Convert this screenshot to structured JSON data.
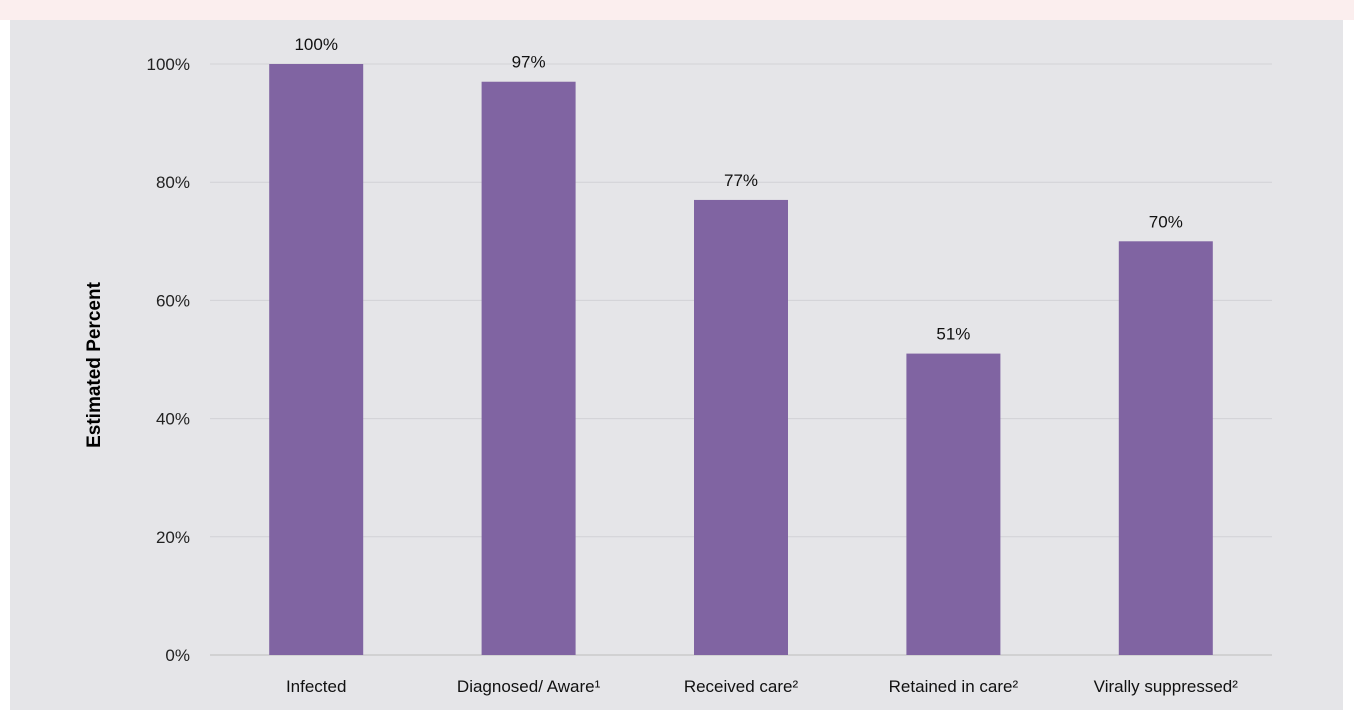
{
  "chart_data": {
    "type": "bar",
    "categories": [
      "Infected",
      "Diagnosed/ Aware¹",
      "Received care²",
      "Retained in care²",
      "Virally suppressed²"
    ],
    "values": [
      100,
      97,
      77,
      51,
      70
    ],
    "value_labels": [
      "100%",
      "97%",
      "77%",
      "51%",
      "70%"
    ],
    "ylabel": "Estimated Percent",
    "xlabel": "",
    "ylim": [
      0,
      100
    ],
    "yticks": [
      0,
      20,
      40,
      60,
      80,
      100
    ],
    "ytick_labels": [
      "0%",
      "20%",
      "40%",
      "60%",
      "80%",
      "100%"
    ],
    "grid": true,
    "bar_color": "#8064a2",
    "background_color": "#e5e5e8"
  }
}
